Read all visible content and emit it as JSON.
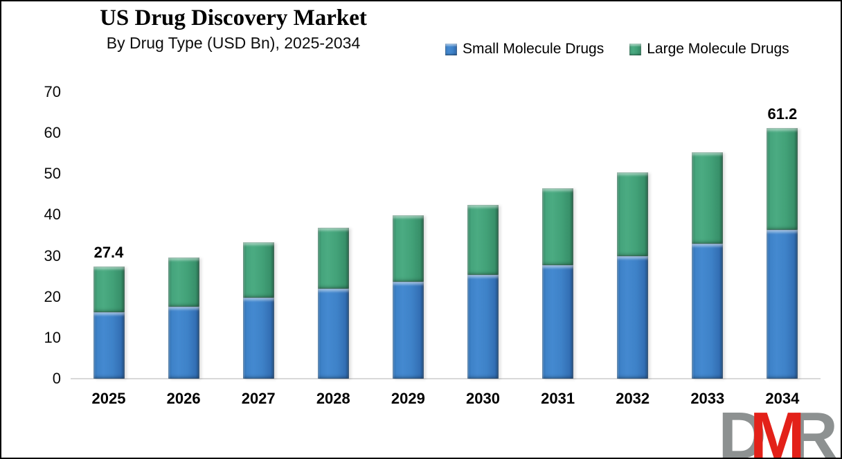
{
  "header": {
    "title": "US Drug Discovery Market",
    "subtitle": "By Drug Type (USD Bn), 2025-2034"
  },
  "legend": [
    {
      "label": "Small Molecule Drugs",
      "color": "#3579BE"
    },
    {
      "label": "Large Molecule Drugs",
      "color": "#41A077"
    }
  ],
  "chart_data": {
    "type": "bar",
    "stacked": true,
    "title": "US Drug Discovery Market",
    "subtitle": "By Drug Type (USD Bn), 2025-2034",
    "unit": "USD Bn",
    "categories": [
      "2025",
      "2026",
      "2027",
      "2028",
      "2029",
      "2030",
      "2031",
      "2032",
      "2033",
      "2034"
    ],
    "series": [
      {
        "name": "Small Molecule Drugs",
        "color": "#3579BE",
        "values": [
          16.3,
          17.6,
          19.8,
          21.9,
          23.6,
          25.3,
          27.7,
          29.9,
          32.9,
          36.4
        ]
      },
      {
        "name": "Large Molecule Drugs",
        "color": "#41A077",
        "values": [
          11.1,
          12.0,
          13.5,
          14.8,
          16.3,
          17.1,
          18.7,
          20.4,
          22.3,
          24.8
        ]
      }
    ],
    "data_labels": [
      {
        "category": "2025",
        "index": 0,
        "text": "27.4"
      },
      {
        "category": "2034",
        "index": 9,
        "text": "61.2"
      }
    ],
    "ylim": [
      0,
      70
    ],
    "y_ticks": [
      0,
      10,
      20,
      30,
      40,
      50,
      60,
      70
    ],
    "grid": false,
    "legend_position": "top-right",
    "axis_line_color": "#D8D8D8",
    "xlabel": "",
    "ylabel": ""
  },
  "logo": {
    "letters": [
      {
        "char": "D",
        "color": "#8D9191"
      },
      {
        "char": "M",
        "color": "#E32119"
      },
      {
        "char": "R",
        "color": "#8D9191"
      }
    ]
  }
}
